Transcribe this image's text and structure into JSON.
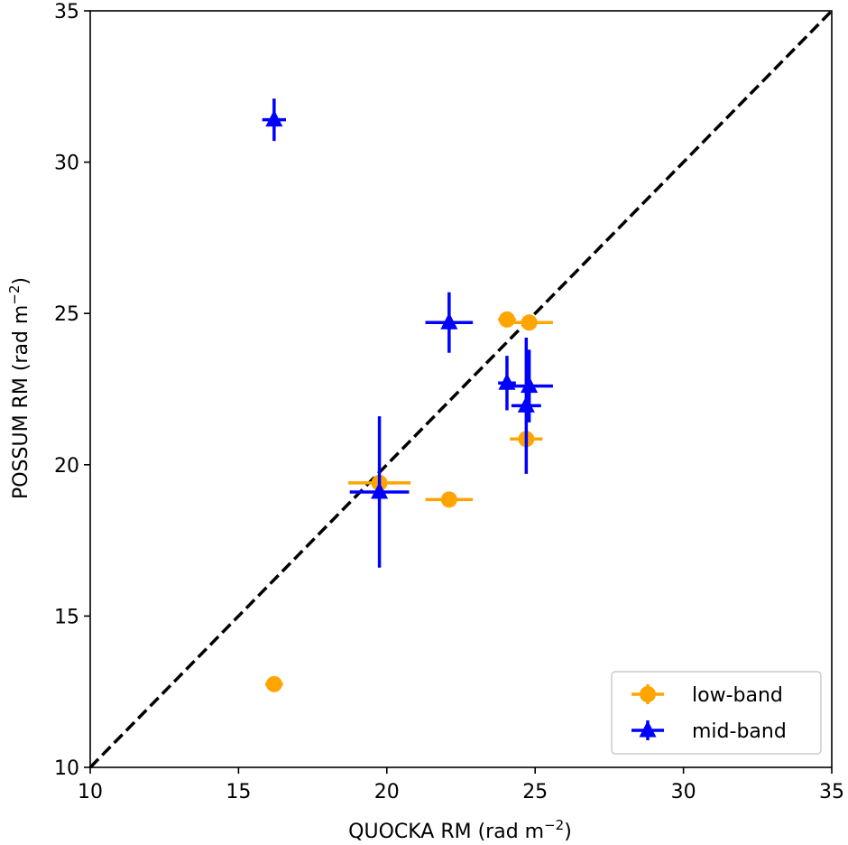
{
  "chart_data": {
    "type": "scatter",
    "xlabel": "QUOCKA RM (rad m",
    "ylabel": "POSSUM RM (rad m",
    "label_exponent": "−2",
    "label_close": ")",
    "xlim": [
      10,
      35
    ],
    "ylim": [
      10,
      35
    ],
    "xticks": [
      "10",
      "15",
      "20",
      "25",
      "30",
      "35"
    ],
    "yticks": [
      "10",
      "15",
      "20",
      "25",
      "30",
      "35"
    ],
    "reference_line": {
      "type": "y=x",
      "style": "dashed",
      "color": "#000000"
    },
    "legend": {
      "placement": "bottom-right",
      "entries": [
        "low-band",
        "mid-band"
      ]
    },
    "series": [
      {
        "name": "low-band",
        "color": "#ffa500",
        "marker": "circle",
        "points": [
          {
            "x": 16.2,
            "y": 12.75,
            "xerr": 0.3,
            "yerr": 0.15
          },
          {
            "x": 19.75,
            "y": 19.4,
            "xerr": 1.05,
            "yerr": 0.15
          },
          {
            "x": 22.1,
            "y": 18.85,
            "xerr": 0.8,
            "yerr": 0.15
          },
          {
            "x": 24.05,
            "y": 24.8,
            "xerr": 0.3,
            "yerr": 0.15
          },
          {
            "x": 24.8,
            "y": 24.7,
            "xerr": 0.8,
            "yerr": 0.15
          },
          {
            "x": 24.7,
            "y": 20.85,
            "xerr": 0.55,
            "yerr": 0.15
          }
        ]
      },
      {
        "name": "mid-band",
        "color": "#0000ff",
        "marker": "triangle",
        "points": [
          {
            "x": 16.2,
            "y": 31.4,
            "xerr": 0.4,
            "yerr": 0.7
          },
          {
            "x": 22.1,
            "y": 24.7,
            "xerr": 0.8,
            "yerr": 1.0
          },
          {
            "x": 19.75,
            "y": 19.1,
            "xerr": 1.0,
            "yerr": 2.5
          },
          {
            "x": 24.05,
            "y": 22.7,
            "xerr": 0.3,
            "yerr": 0.9
          },
          {
            "x": 24.8,
            "y": 22.6,
            "xerr": 0.8,
            "yerr": 1.2
          },
          {
            "x": 24.7,
            "y": 21.95,
            "xerr": 0.5,
            "yerr": 2.25
          }
        ]
      }
    ]
  }
}
